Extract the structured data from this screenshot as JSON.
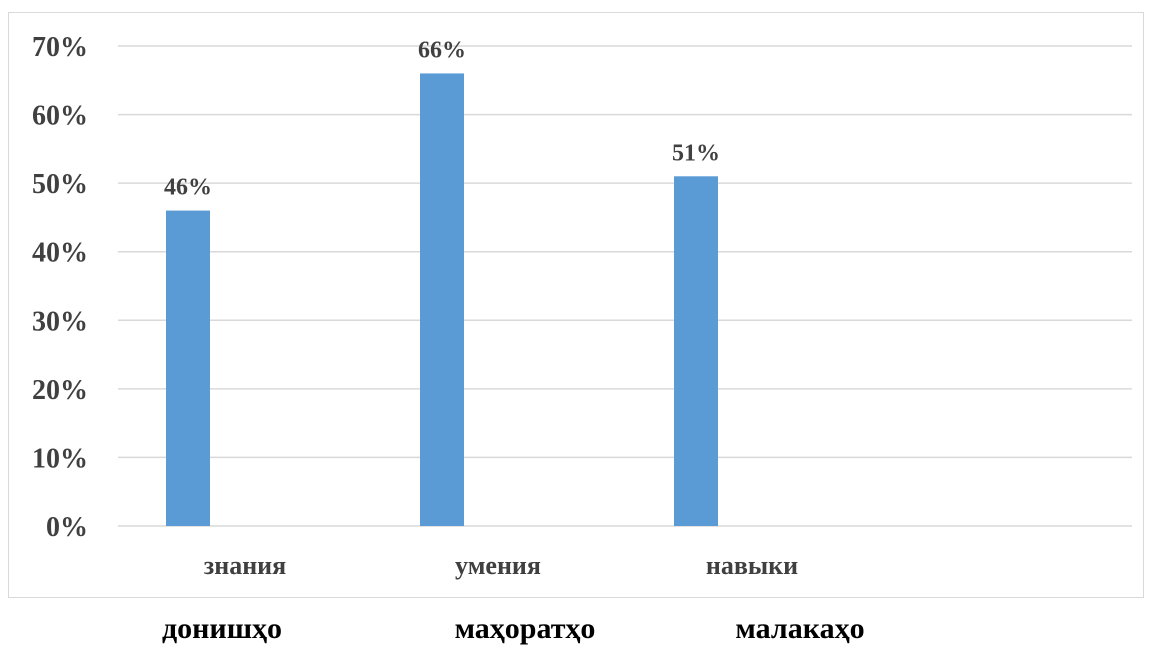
{
  "chart_data": {
    "type": "bar",
    "categories": [
      "знания",
      "умения",
      "навыки"
    ],
    "values": [
      46,
      66,
      51
    ],
    "data_labels": [
      "46%",
      "66%",
      "51%"
    ],
    "y_ticks": [
      "0%",
      "10%",
      "20%",
      "30%",
      "40%",
      "50%",
      "60%",
      "70%"
    ],
    "y_tick_values": [
      0,
      10,
      20,
      30,
      40,
      50,
      60,
      70
    ],
    "ylim": [
      0,
      70
    ],
    "grid": true,
    "bar_color": "#5b9bd5",
    "grid_color": "#d9d9d9",
    "text_color": "#404040"
  },
  "secondary_labels": [
    "донишҳо",
    "маҳоратҳо",
    "малакаҳо"
  ]
}
